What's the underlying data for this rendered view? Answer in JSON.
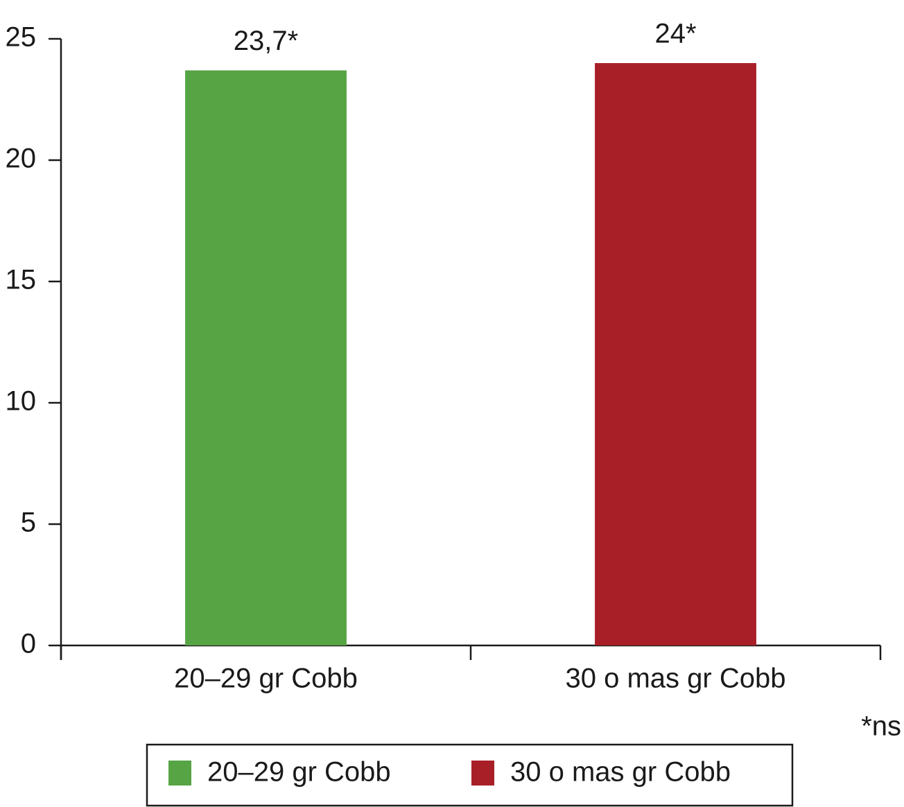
{
  "chart_data": {
    "type": "bar",
    "categories": [
      "20–29 gr Cobb",
      "30 o mas gr Cobb"
    ],
    "values": [
      23.7,
      24
    ],
    "value_labels": [
      "23,7*",
      "24*"
    ],
    "colors": [
      "#57a444",
      "#a81f28"
    ],
    "ylim": [
      0,
      25
    ],
    "yticks": [
      0,
      5,
      10,
      15,
      20,
      25
    ],
    "footnote": "*ns",
    "legend": "bottom"
  }
}
